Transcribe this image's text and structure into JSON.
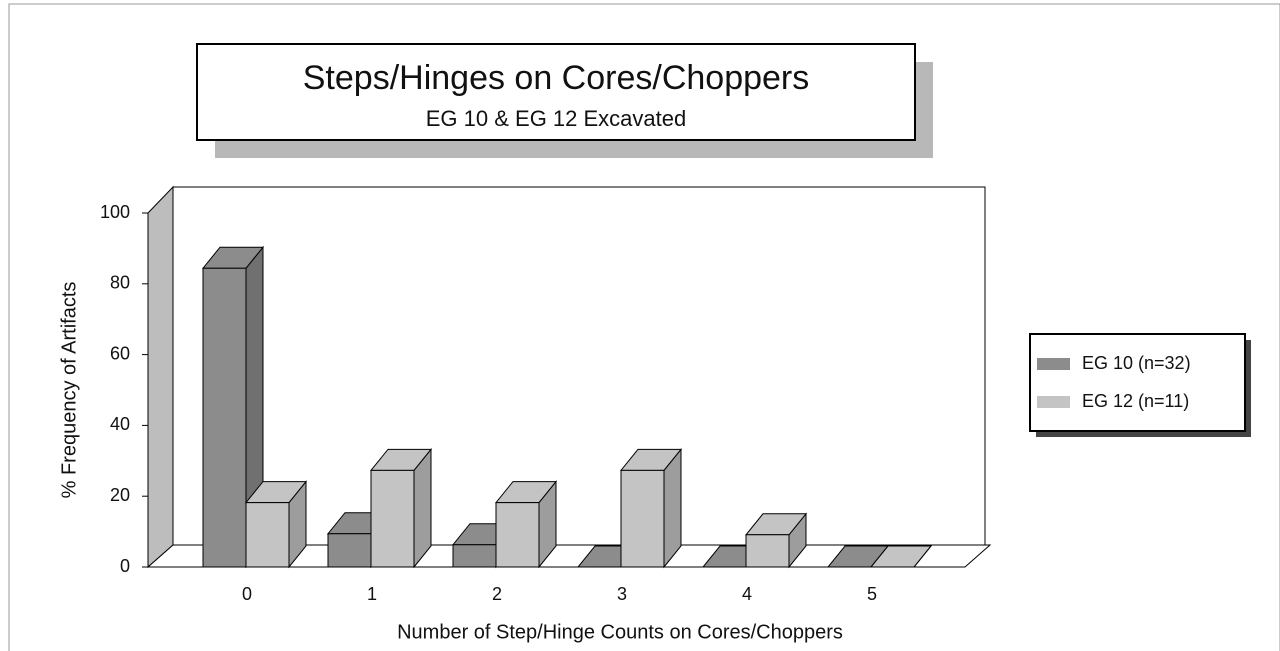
{
  "chart_data": {
    "type": "bar3d",
    "title": "Steps/Hinges on Cores/Choppers",
    "subtitle": "EG 10 & EG 12 Excavated",
    "x_label": "Number of Step/Hinge Counts on Cores/Choppers",
    "y_label": "% Frequency of Artifacts",
    "categories": [
      "0",
      "1",
      "2",
      "3",
      "4",
      "5"
    ],
    "series": [
      {
        "name": "EG 10 (n=32)",
        "color": "#8c8c8c",
        "values": [
          84.4,
          9.4,
          6.3,
          0,
          0,
          0
        ]
      },
      {
        "name": "EG 12 (n=11)",
        "color": "#c4c4c4",
        "values": [
          18.2,
          27.3,
          18.2,
          27.3,
          9.1,
          0
        ]
      }
    ],
    "ylim": [
      0,
      100
    ],
    "yticks": [
      0,
      20,
      40,
      60,
      80,
      100
    ],
    "legend": "right"
  }
}
